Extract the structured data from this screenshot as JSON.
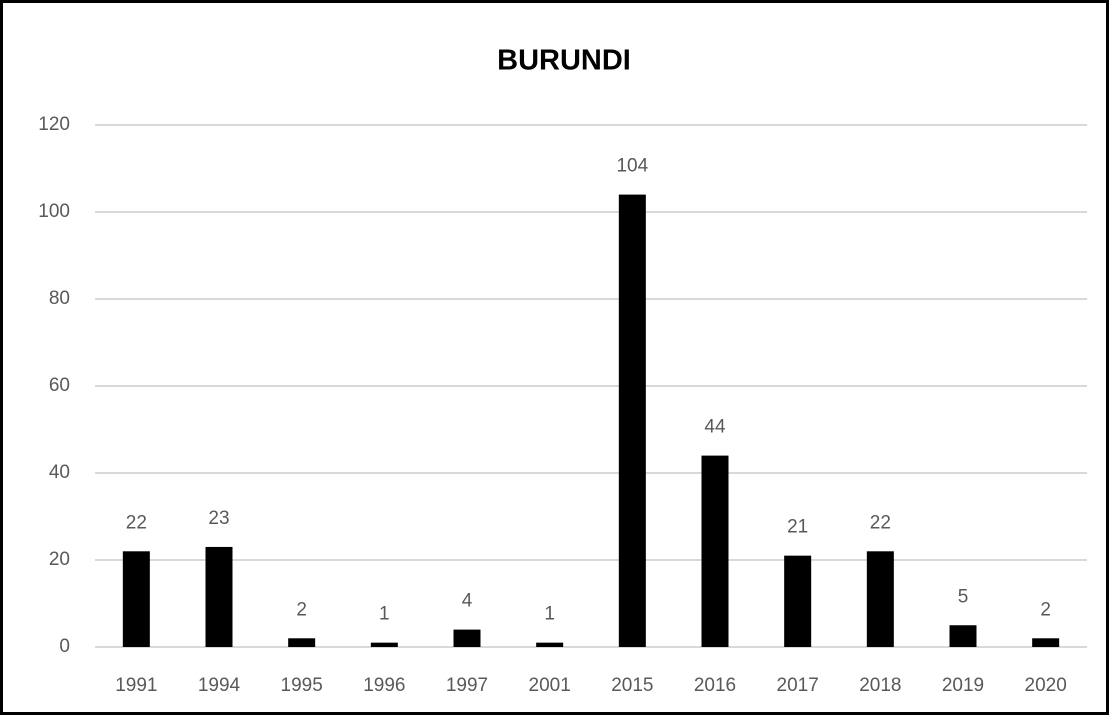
{
  "chart_data": {
    "type": "bar",
    "title": "BURUNDI",
    "categories": [
      "1991",
      "1994",
      "1995",
      "1996",
      "1997",
      "2001",
      "2015",
      "2016",
      "2017",
      "2018",
      "2019",
      "2020"
    ],
    "values": [
      22,
      23,
      2,
      1,
      4,
      1,
      104,
      44,
      21,
      22,
      5,
      2
    ],
    "color": "#000000",
    "ylim": [
      0,
      120
    ],
    "yticks": [
      0,
      20,
      40,
      60,
      80,
      100,
      120
    ],
    "grid": true,
    "data_labels": true
  }
}
